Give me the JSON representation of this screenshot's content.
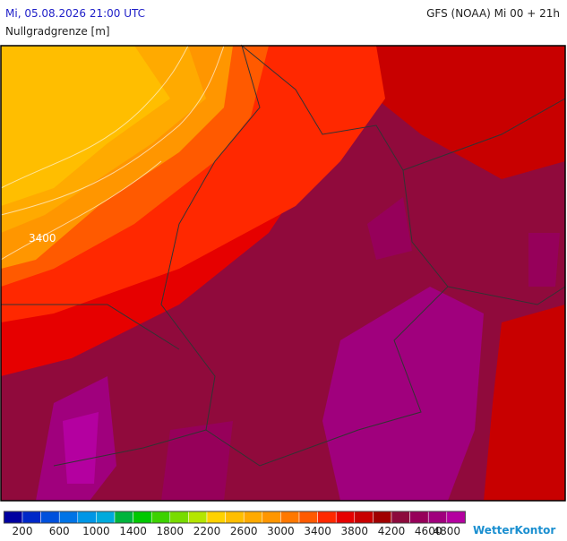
{
  "header": {
    "title": "Mi, 05.08.2026 21:00 UTC",
    "model": "GFS (NOAA) Mi 00 + 21h",
    "subtitle": "Nullgradgrenze [m]"
  },
  "map": {
    "contour_label": "3400"
  },
  "legend": {
    "colors": [
      "#0000a0",
      "#0028c8",
      "#0050dc",
      "#0073e6",
      "#0096e6",
      "#00aadc",
      "#00b43c",
      "#00c800",
      "#3cd200",
      "#78dc00",
      "#b4e600",
      "#ffd200",
      "#ffbe00",
      "#ffaa00",
      "#ff9600",
      "#ff7800",
      "#ff5a00",
      "#ff2800",
      "#e60000",
      "#c80000",
      "#a00000",
      "#8c0a3c",
      "#96005a",
      "#a0007d",
      "#b400a0"
    ],
    "labels": [
      200,
      600,
      1000,
      1400,
      1800,
      2200,
      2600,
      3000,
      3400,
      3800,
      4200,
      4600,
      4800
    ]
  },
  "logo": "WetterKontor"
}
